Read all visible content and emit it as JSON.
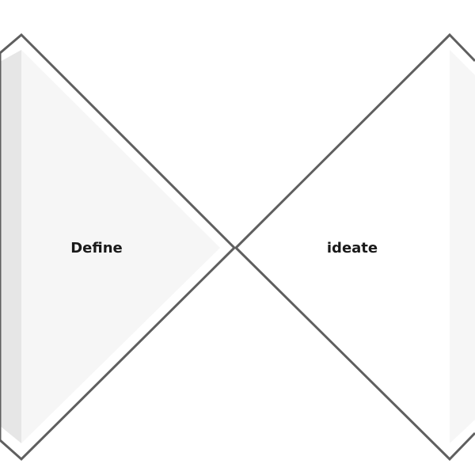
{
  "diagram": {
    "stages": [
      {
        "id": "define",
        "label": "Define"
      },
      {
        "id": "ideate",
        "label": "ideate"
      }
    ]
  },
  "colors": {
    "background": "#ffffff",
    "outline": "#5f5f5f",
    "fill_light": "#f6f6f6",
    "fill_shade": "#e6e6e6",
    "text": "#1a1a1a"
  }
}
